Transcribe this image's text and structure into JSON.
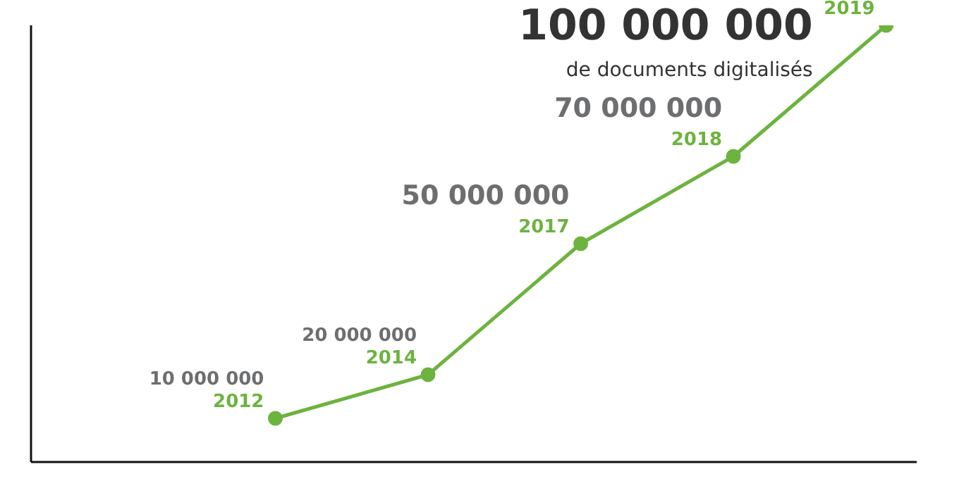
{
  "chart_data": {
    "type": "line",
    "categories": [
      "2012",
      "2014",
      "2017",
      "2018",
      "2019"
    ],
    "series": [
      {
        "color": "#6db33f",
        "values": [
          10000000,
          20000000,
          50000000,
          70000000,
          100000000
        ],
        "value_labels": [
          "10 000 000",
          "20 000 000",
          "50 000 000",
          "70 000 000",
          "100 000 000"
        ]
      }
    ],
    "tick_labels": false,
    "marker": "circle",
    "line_style": "solid",
    "annotations": [
      "de documents digitalisés"
    ]
  }
}
